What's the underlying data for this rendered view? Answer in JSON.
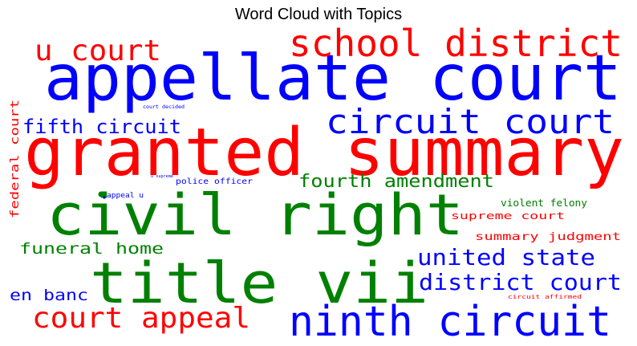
{
  "chart_data": {
    "type": "wordcloud",
    "title": "Word Cloud with Topics",
    "colors": {
      "red": "#ff0000",
      "blue": "#0000ff",
      "green": "#008000"
    },
    "words": [
      {
        "text": "granted summary",
        "color": "red"
      },
      {
        "text": "appellate court",
        "color": "blue"
      },
      {
        "text": "civil right",
        "color": "green"
      },
      {
        "text": "title vii",
        "color": "green"
      },
      {
        "text": "school district",
        "color": "red"
      },
      {
        "text": "circuit court",
        "color": "blue"
      },
      {
        "text": "ninth circuit",
        "color": "blue"
      },
      {
        "text": "u court",
        "color": "red"
      },
      {
        "text": "court appeal",
        "color": "red"
      },
      {
        "text": "district court",
        "color": "blue"
      },
      {
        "text": "united state",
        "color": "blue"
      },
      {
        "text": "fifth circuit",
        "color": "blue"
      },
      {
        "text": "fourth amendment",
        "color": "green"
      },
      {
        "text": "funeral home",
        "color": "green"
      },
      {
        "text": "en banc",
        "color": "blue"
      },
      {
        "text": "federal court",
        "color": "red"
      },
      {
        "text": "supreme court",
        "color": "red"
      },
      {
        "text": "summary judgment",
        "color": "red"
      },
      {
        "text": "violent felony",
        "color": "green"
      },
      {
        "text": "police officer",
        "color": "blue"
      },
      {
        "text": "appeal u",
        "color": "blue"
      },
      {
        "text": "circuit affirmed",
        "color": "red"
      },
      {
        "text": "court decided",
        "color": "blue"
      },
      {
        "text": "u supreme",
        "color": "blue"
      }
    ]
  }
}
